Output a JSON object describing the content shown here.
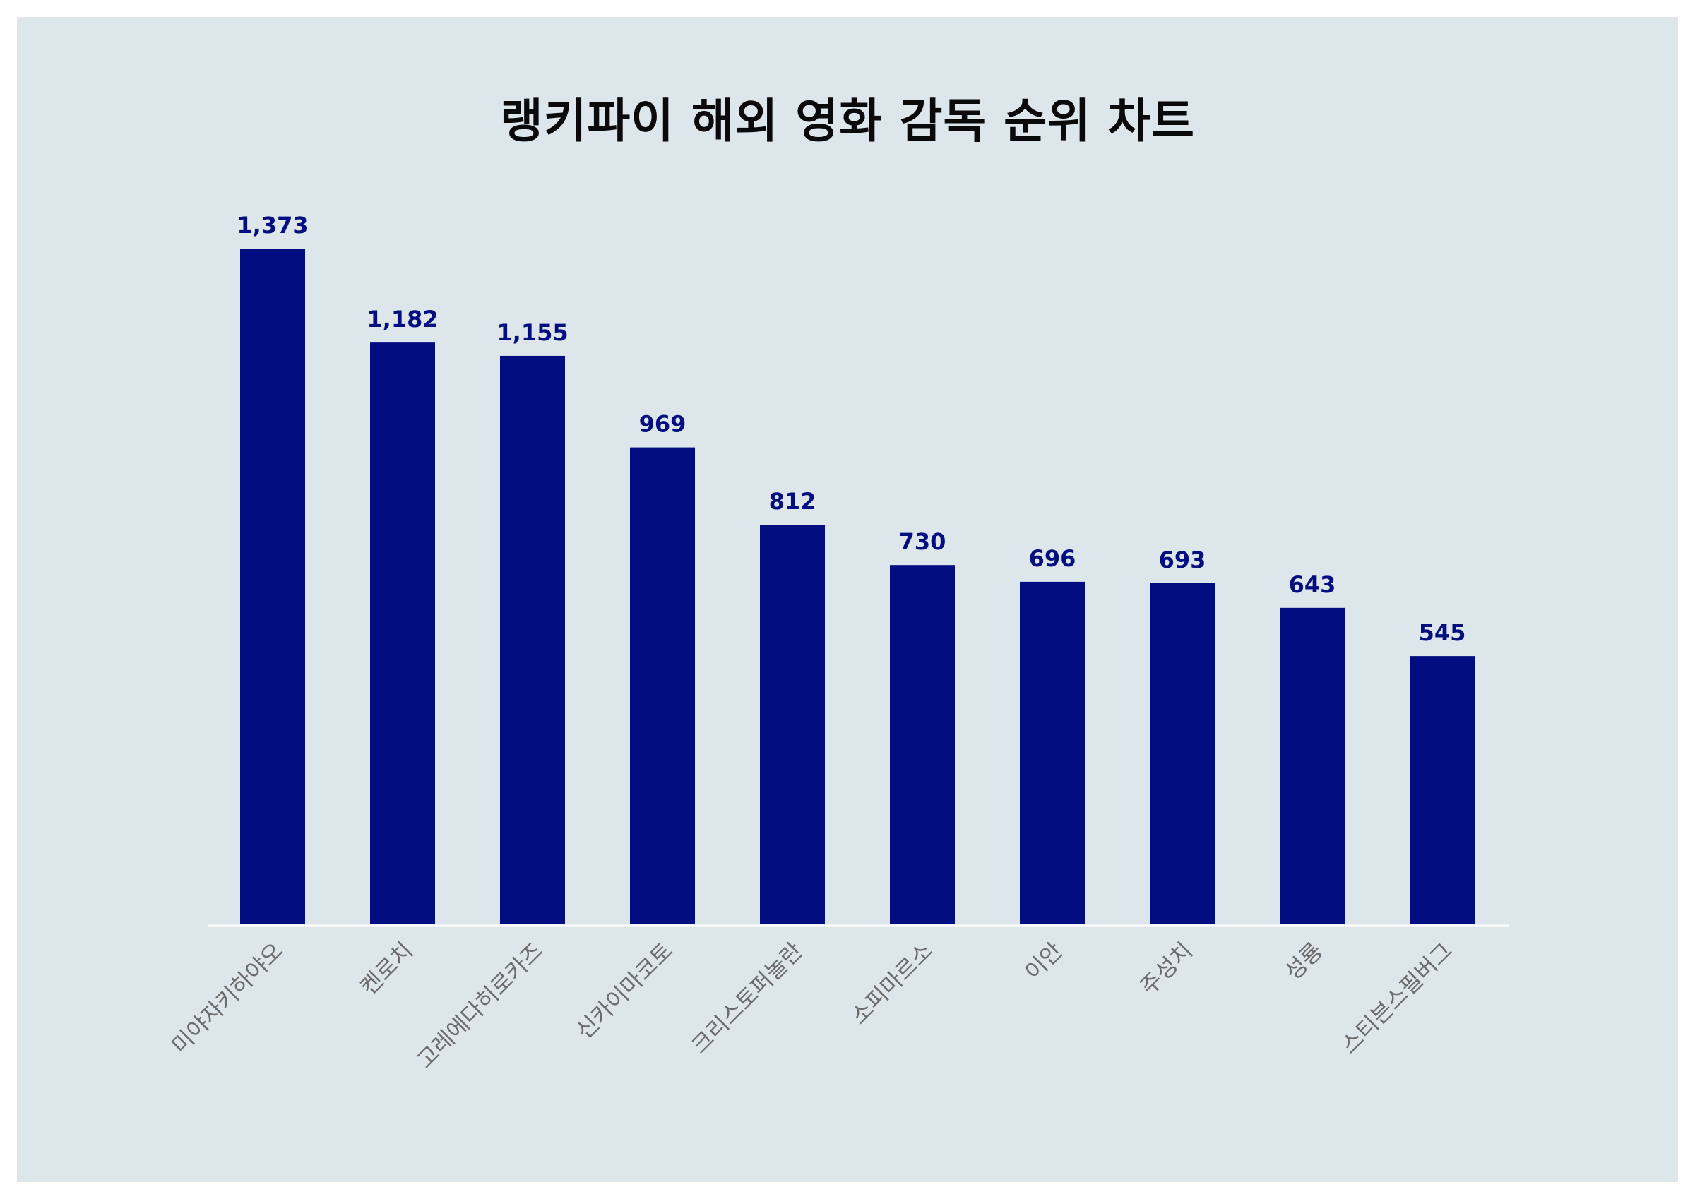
{
  "chart_data": {
    "type": "bar",
    "title": "랭키파이 해외 영화 감독 순위 차트",
    "xlabel": "",
    "ylabel": "",
    "categories": [
      "미야자키하야오",
      "켄로치",
      "고레에다히로카즈",
      "신카이마코토",
      "크리스토퍼놀란",
      "소피마르소",
      "이안",
      "주성치",
      "성룡",
      "스티븐스필버그"
    ],
    "values": [
      1373,
      1182,
      1155,
      969,
      812,
      730,
      696,
      693,
      643,
      545
    ],
    "value_labels": [
      "1,373",
      "1,182",
      "1,155",
      "969",
      "812",
      "730",
      "696",
      "693",
      "643",
      "545"
    ],
    "ylim": [
      0,
      1373
    ],
    "grid": false,
    "legend": "none"
  },
  "colors": {
    "background": "#dce6eb",
    "bar": "#020d80",
    "value_label": "#020d80",
    "axis_line": "#ffffff",
    "category_label": "#6b6b6b",
    "title": "#0a0a0a"
  }
}
